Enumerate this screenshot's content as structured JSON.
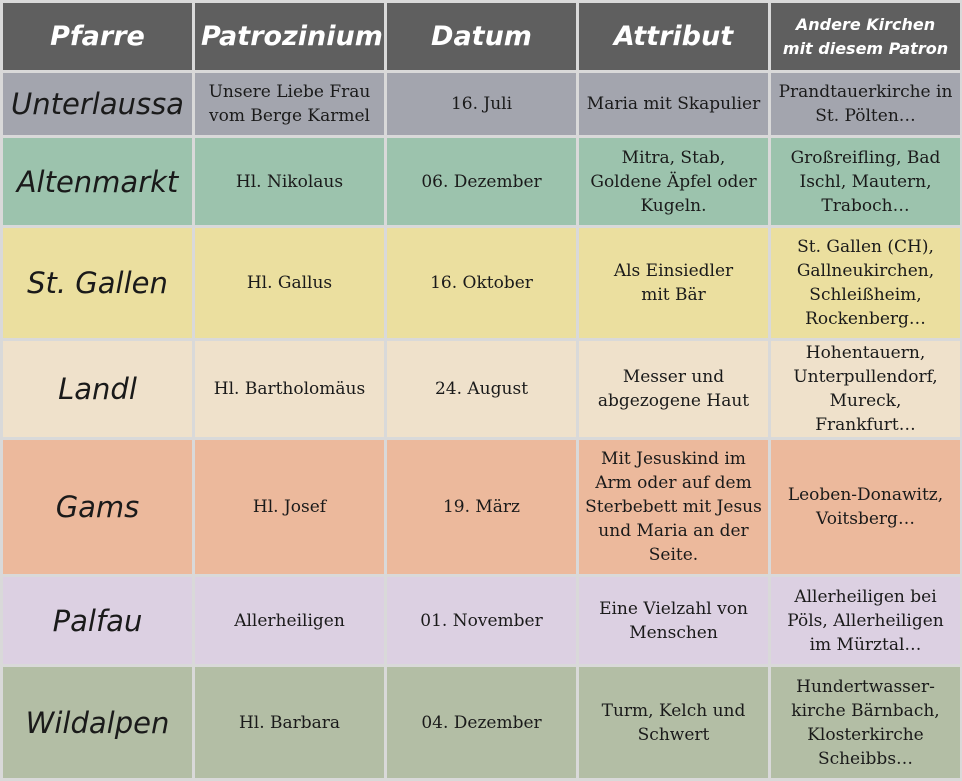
{
  "headers": [
    "Pfarre",
    "Patrozinium",
    "Datum",
    "Attribut",
    "Andere Kirchen\nmit diesem Patron"
  ],
  "rows": [
    {
      "color": "#a3a5ae",
      "cells": [
        "Unterlaussa",
        "Unsere Liebe Frau\nvom Berge Karmel",
        "16. Juli",
        "Maria mit Skapulier",
        "Prandtauerkirche in\nSt. Pölten…"
      ]
    },
    {
      "color": "#9cc3ad",
      "cells": [
        "Altenmarkt",
        "Hl. Nikolaus",
        "06. Dezember",
        "Mitra, Stab,\nGoldene Äpfel oder\nKugeln.",
        "Großreifling, Bad\nIschl, Mautern,\nTraboch…"
      ]
    },
    {
      "color": "#ebdf9f",
      "cells": [
        "St. Gallen",
        "Hl. Gallus",
        "16. Oktober",
        "Als Einsiedler\nmit Bär",
        "St. Gallen (CH),\nGallneukirchen,\nSchleißheim,\nRockenberg…"
      ]
    },
    {
      "color": "#efe1cb",
      "cells": [
        "Landl",
        "Hl. Bartholomäus",
        "24. August",
        "Messer und\nabgezogene Haut",
        "Hohentauern,\nUnterpullendorf,\nMureck, Frankfurt…"
      ]
    },
    {
      "color": "#ecb99c",
      "cells": [
        "Gams",
        "Hl. Josef",
        "19. März",
        "Mit Jesuskind im\nArm oder auf dem\nSterbebett mit Jesus\nund Maria an der\nSeite.",
        "Leoben-Donawitz,\nVoitsberg…"
      ]
    },
    {
      "color": "#dcd0e2",
      "cells": [
        "Palfau",
        "Allerheiligen",
        "01. November",
        "Eine Vielzahl von\nMenschen",
        "Allerheiligen bei\nPöls, Allerheiligen\nim Mürztal…"
      ]
    },
    {
      "color": "#b3bea5",
      "cells": [
        "Wildalpen",
        "Hl. Barbara",
        "04. Dezember",
        "Turm, Kelch und\nSchwert",
        "Hundertwasser-\nkirche Bärnbach,\nKlosterkirche\nScheibbs…"
      ]
    }
  ]
}
